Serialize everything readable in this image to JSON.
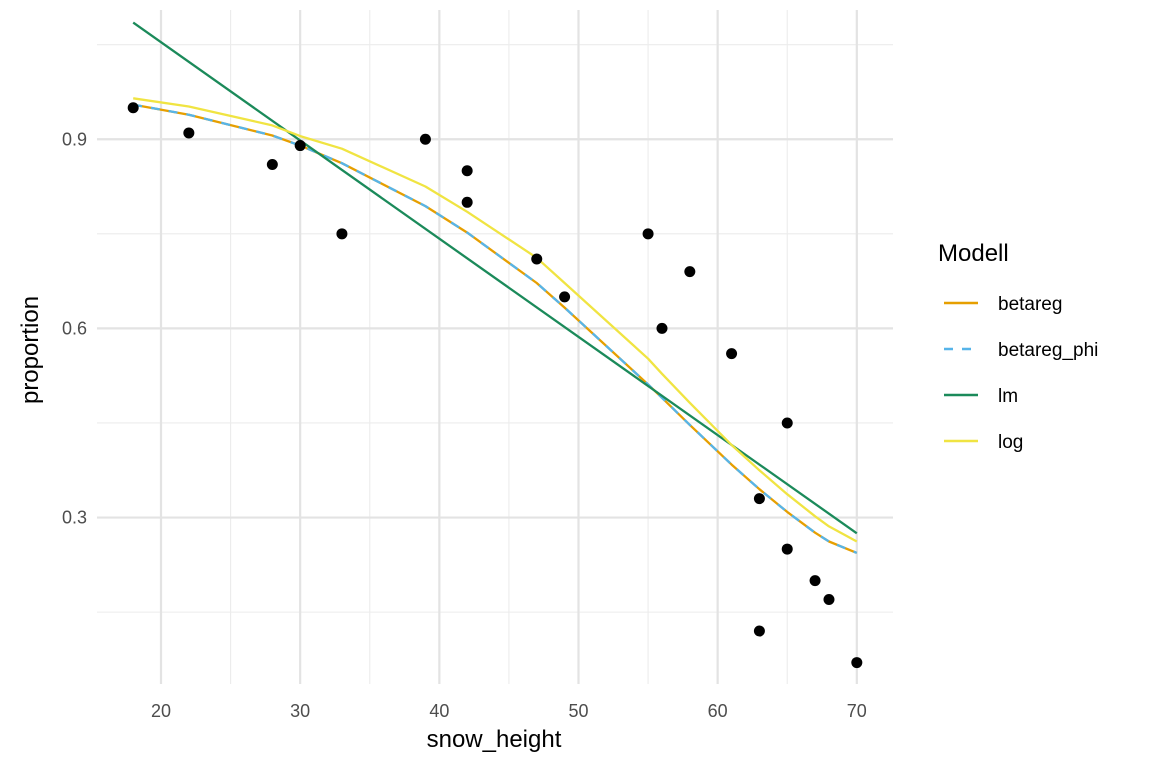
{
  "chart_data": {
    "type": "scatter",
    "title": "",
    "xlabel": "snow_height",
    "ylabel": "proportion",
    "xlim": [
      15.4,
      72.6
    ],
    "ylim": [
      0.036,
      1.105
    ],
    "x_ticks": [
      20,
      30,
      40,
      50,
      60,
      70
    ],
    "y_ticks": [
      0.3,
      0.6,
      0.9
    ],
    "x_tick_labels": [
      "20",
      "30",
      "40",
      "50",
      "60",
      "70"
    ],
    "y_tick_labels": [
      "0.3",
      "0.6",
      "0.9"
    ],
    "grid": true,
    "legend_position": "right",
    "legend_title": "Modell",
    "points": {
      "color": "#000000",
      "x": [
        18,
        22,
        28,
        30,
        33,
        39,
        42,
        42,
        47,
        49,
        55,
        56,
        58,
        61,
        63,
        63,
        65,
        65,
        67,
        68,
        70
      ],
      "y": [
        0.95,
        0.91,
        0.86,
        0.89,
        0.75,
        0.9,
        0.85,
        0.8,
        0.71,
        0.65,
        0.75,
        0.6,
        0.69,
        0.56,
        0.33,
        0.12,
        0.45,
        0.25,
        0.2,
        0.17,
        0.07
      ]
    },
    "series": [
      {
        "name": "betareg",
        "color": "#E69F00",
        "dash": false,
        "x": [
          18,
          22,
          28,
          30,
          33,
          39,
          42,
          47,
          49,
          55,
          56,
          58,
          61,
          63,
          65,
          67,
          68,
          70
        ],
        "y": [
          0.955,
          0.939,
          0.906,
          0.89,
          0.862,
          0.794,
          0.752,
          0.672,
          0.633,
          0.511,
          0.49,
          0.447,
          0.384,
          0.345,
          0.309,
          0.276,
          0.262,
          0.244
        ]
      },
      {
        "name": "betareg_phi",
        "color": "#56B4E9",
        "dash": true,
        "x": [
          18,
          22,
          28,
          30,
          33,
          39,
          42,
          47,
          49,
          55,
          56,
          58,
          61,
          63,
          65,
          67,
          68,
          70
        ],
        "y": [
          0.955,
          0.939,
          0.906,
          0.89,
          0.862,
          0.794,
          0.752,
          0.672,
          0.633,
          0.511,
          0.49,
          0.447,
          0.384,
          0.345,
          0.309,
          0.276,
          0.262,
          0.244
        ]
      },
      {
        "name": "lm",
        "color": "#1B8A5A",
        "dash": false,
        "x": [
          18,
          70
        ],
        "y": [
          1.085,
          0.275
        ]
      },
      {
        "name": "log",
        "color": "#F0E442",
        "dash": false,
        "x": [
          18,
          22,
          28,
          30,
          33,
          39,
          42,
          47,
          49,
          55,
          56,
          58,
          61,
          63,
          65,
          67,
          68,
          70
        ],
        "y": [
          0.965,
          0.952,
          0.922,
          0.905,
          0.885,
          0.825,
          0.785,
          0.712,
          0.672,
          0.552,
          0.528,
          0.482,
          0.415,
          0.375,
          0.337,
          0.302,
          0.286,
          0.262
        ]
      }
    ]
  }
}
